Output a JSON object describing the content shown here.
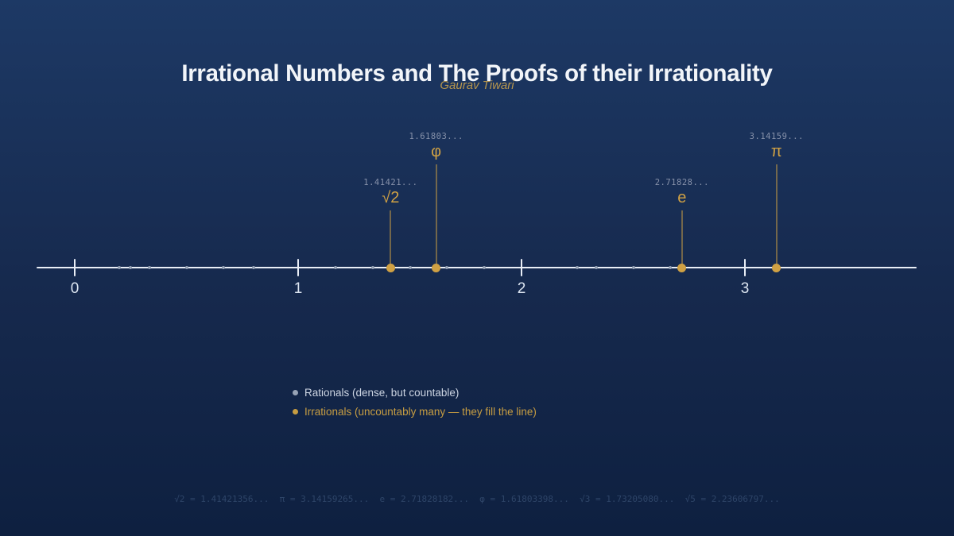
{
  "page": {
    "title": "Irrational Numbers and The Proofs of their Irrationality",
    "subtitle": "Gaurav Tiwari"
  },
  "colors": {
    "bg_top": "#1d3965",
    "bg_mid": "#16294d",
    "bg_bottom": "#0e2040",
    "gold": "#d0a144",
    "gray_dot": "#97a3b6",
    "line": "#e9eef6",
    "title": "#f2f5f9",
    "subtitle": "#b6954d",
    "value_label": "#8792aa",
    "axis_label": "#dce5f1",
    "legend_gray": "#ccd4e2",
    "legend_gold": "#c79d42",
    "footer": "#2e4568"
  },
  "chart_data": {
    "type": "scatter",
    "title": "Irrational Numbers and The Proofs of their Irrationality",
    "subtitle": "Gaurav Tiwari",
    "xlabel": "",
    "ylabel": "",
    "axis": {
      "ticks": [
        "0",
        "1",
        "2",
        "3"
      ],
      "tick_values": [
        0,
        1,
        2,
        3
      ],
      "xmin": -0.17,
      "xmax": 3.77,
      "grid": false
    },
    "series": [
      {
        "name": "Rationals (dense, but countable)",
        "marker": "small-gray-dot",
        "x": [
          0.2,
          0.25,
          0.333,
          0.5,
          0.667,
          0.8,
          1.167,
          1.333,
          1.5,
          1.667,
          1.833,
          2.25,
          2.333,
          2.5,
          2.667
        ]
      },
      {
        "name": "Irrationals (uncountably many — they fill the line)",
        "marker": "gold-dot",
        "points": [
          {
            "symbol": "√2",
            "x": 1.41421,
            "label": "1.41421...",
            "tier": "low"
          },
          {
            "symbol": "φ",
            "x": 1.61803,
            "label": "1.61803...",
            "tier": "high"
          },
          {
            "symbol": "e",
            "x": 2.71828,
            "label": "2.71828...",
            "tier": "low"
          },
          {
            "symbol": "π",
            "x": 3.14159,
            "label": "3.14159...",
            "tier": "high"
          }
        ]
      }
    ],
    "legend_position": "below-center-left"
  },
  "legend": {
    "items": [
      {
        "label": "Rationals (dense, but countable)",
        "color": "#97a3b6"
      },
      {
        "label": "Irrationals (uncountably many — they fill the line)",
        "color": "#c79d42"
      }
    ]
  },
  "footer": {
    "text": "√2 = 1.41421356...  π = 3.14159265...  e = 2.71828182...  φ = 1.61803398...  √3 = 1.73205080...  √5 = 2.23606797..."
  }
}
